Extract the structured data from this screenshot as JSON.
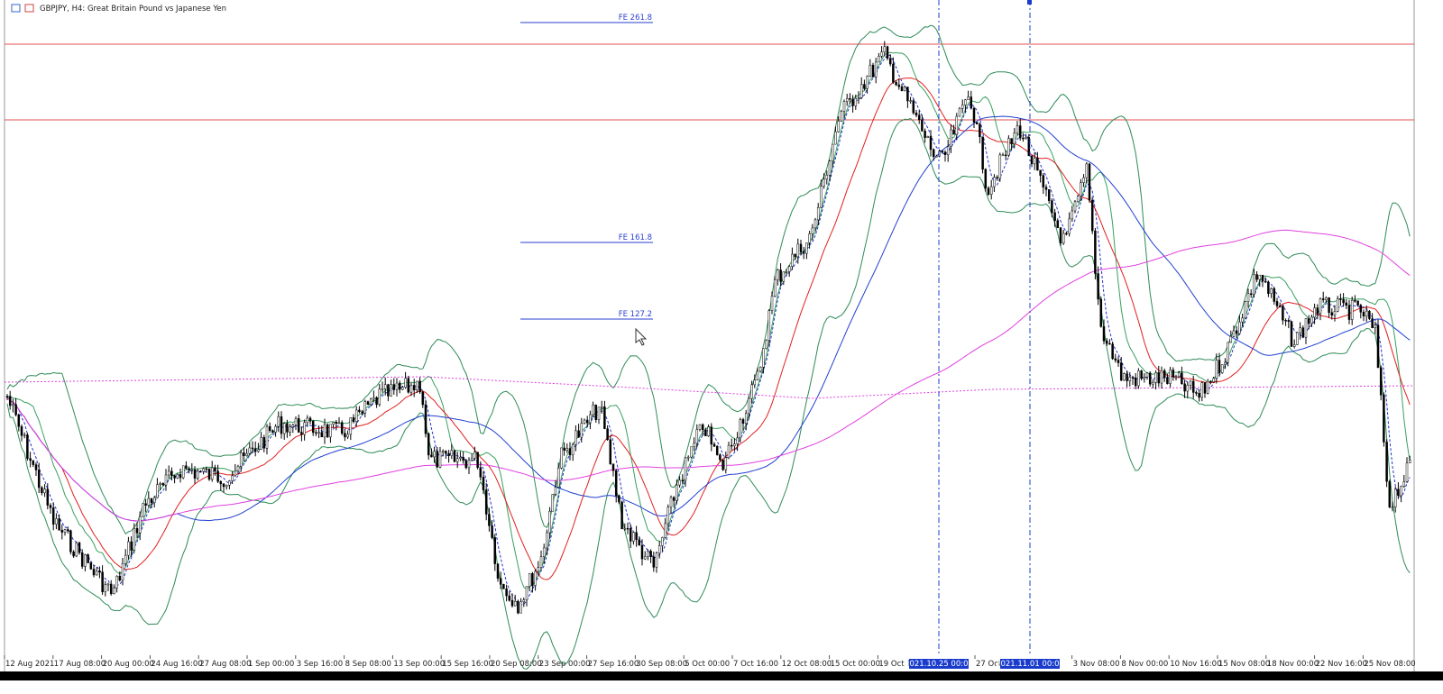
{
  "header": {
    "title": "GBPJPY, H4:  Great Britain Pound vs Japanese Yen"
  },
  "fibo_labels": [
    "FE 261.8",
    "FE 161.8",
    "FE  127.2"
  ],
  "time_axis": {
    "labels": [
      "12 Aug 2021",
      "17 Aug 08:00",
      "20 Aug 00:00",
      "24 Aug 16:00",
      "27 Aug 08:00",
      "1 Sep 00:00",
      "3 Sep 16:00",
      "8 Sep 08:00",
      "13 Sep 00:00",
      "15 Sep 16:00",
      "20 Sep 08:00",
      "23 Sep 00:00",
      "27 Sep 16:00",
      "30 Sep 08:00",
      "5 Oct 00:00",
      "7 Oct 16:00",
      "12 Oct 08:00",
      "15 Oct 00:00",
      "19 Oct 16",
      "27 Oct",
      "3 Nov 08:00",
      "8 Nov 00:00",
      "10 Nov 16:00",
      "15 Nov 08:00",
      "18 Nov 00:00",
      "22 Nov 16:00",
      "25 Nov 08:00"
    ],
    "highlights": [
      "2021.10.25 00:00",
      "2021.11.01 00:00"
    ]
  }
}
